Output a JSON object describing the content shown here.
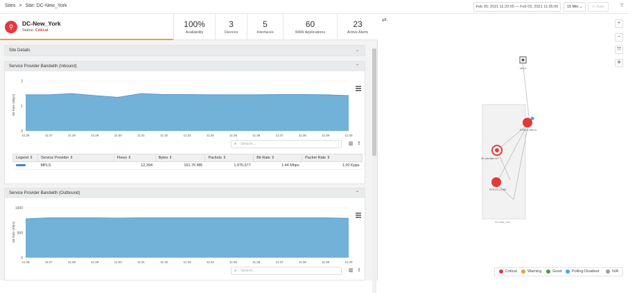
{
  "breadcrumb": {
    "root": "Sites",
    "sep": ">",
    "current": "Site: DC-New_York"
  },
  "timebar": {
    "range": "Feb 05, 2021 11:20:00 — Feb 05, 2021 11:35:00",
    "interval": "15 Min",
    "auto": "Auto"
  },
  "site": {
    "name": "DC-New_York",
    "status_label": "Status:",
    "status_value": "Critical"
  },
  "kpis": [
    {
      "value": "100%",
      "label": "Availability"
    },
    {
      "value": "3",
      "label": "Devices"
    },
    {
      "value": "5",
      "label": "Interfaces"
    },
    {
      "value": "60",
      "label": "WAN Applications"
    },
    {
      "value": "23",
      "label": "Active Alerts"
    }
  ],
  "site_details": {
    "title": "Site Details"
  },
  "inbound": {
    "title": "Service Provider Bandwith (Inbound)",
    "search_placeholder": "Search...",
    "table": {
      "headers": [
        "Legend",
        "Service Provider",
        "Flows",
        "Bytes",
        "Packets",
        "Bit Rate",
        "Packet Rate"
      ],
      "rows": [
        {
          "provider": "MPLS",
          "flows": "12,394",
          "bytes": "161.76 MB",
          "packets": "1,076,577",
          "bitrate": "1.44 Mbps",
          "pktrate": "1.20 Kpps"
        }
      ]
    }
  },
  "outbound": {
    "title": "Service Provider Bandwith (Outbound)",
    "search_placeholder": "Search..."
  },
  "chart_data": [
    {
      "type": "area",
      "title": "Service Provider Bandwith (Inbound)",
      "ylabel": "Bit Rate (Mbps)",
      "x": [
        "11:26",
        "11:27",
        "11:28",
        "11:29",
        "11:30",
        "11:31",
        "11:32",
        "11:33",
        "11:34",
        "11:35",
        "11:36",
        "11:37",
        "11:38",
        "11:39",
        "11:40"
      ],
      "series": [
        {
          "name": "MPLS",
          "values": [
            1.45,
            1.45,
            1.5,
            1.42,
            1.35,
            1.5,
            1.46,
            1.46,
            1.45,
            1.45,
            1.45,
            1.46,
            1.46,
            1.45,
            1.42
          ]
        }
      ],
      "ylim": [
        0,
        2
      ],
      "yticks": [
        "0",
        "1",
        "2"
      ],
      "color": "#6aaed6"
    },
    {
      "type": "area",
      "title": "Service Provider Bandwith (Outbound)",
      "ylabel": "Bit Rate (Kbps)",
      "x": [
        "11:26",
        "11:27",
        "11:28",
        "11:29",
        "11:30",
        "11:31",
        "11:32",
        "11:33",
        "11:34",
        "11:35",
        "11:36",
        "11:37",
        "11:38",
        "11:39",
        "11:40"
      ],
      "series": [
        {
          "name": "MPLS",
          "values": [
            780,
            800,
            800,
            800,
            795,
            800,
            800,
            800,
            800,
            800,
            800,
            800,
            800,
            800,
            790
          ]
        }
      ],
      "ylim": [
        0,
        1000
      ],
      "yticks": [
        "0",
        "500",
        "1000"
      ],
      "color": "#6aaed6"
    }
  ],
  "topology": {
    "nodes": [
      {
        "label": "MPLS"
      },
      {
        "label": "RTR-DC-MPLS"
      },
      {
        "label": "SD-cisoWan-NY"
      },
      {
        "label": "RTR-DC-CORE"
      }
    ],
    "group_label": "DC-New_York"
  },
  "map_legend": [
    {
      "label": "Critical",
      "color": "#e53935"
    },
    {
      "label": "Warning",
      "color": "#f0a030"
    },
    {
      "label": "Good",
      "color": "#43a047"
    },
    {
      "label": "Polling Disabled",
      "color": "#42a5f5"
    },
    {
      "label": "N/A",
      "color": "#9e9e9e"
    }
  ]
}
